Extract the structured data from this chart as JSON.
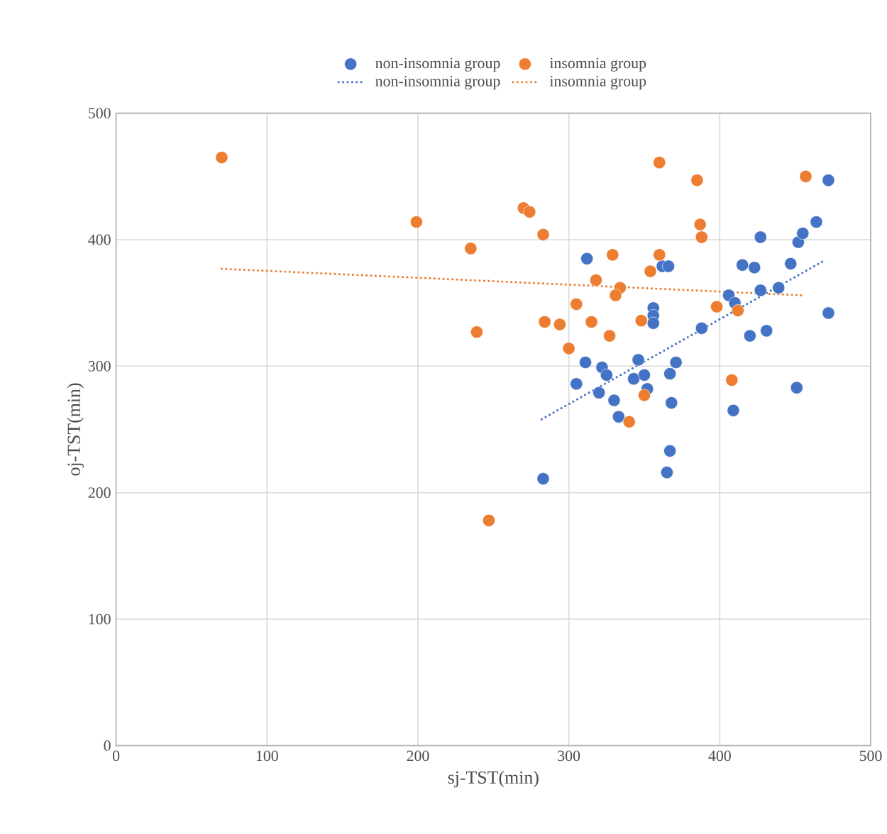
{
  "chart_data": {
    "type": "scatter",
    "xlabel": "sj-TST(min)",
    "ylabel": "oj-TST(min)",
    "xlim": [
      0,
      500
    ],
    "ylim": [
      0,
      500
    ],
    "xticks": [
      0,
      100,
      200,
      300,
      400,
      500
    ],
    "yticks": [
      0,
      100,
      200,
      300,
      400,
      500
    ],
    "grid": true,
    "legend": "top",
    "series": [
      {
        "name": "non-insomnia group",
        "marker": "circle",
        "color": "#4472c4",
        "x": [
          312,
          283,
          311,
          305,
          322,
          325,
          320,
          330,
          333,
          346,
          343,
          350,
          352,
          356,
          356,
          356,
          362,
          366,
          367,
          371,
          368,
          367,
          365,
          388,
          406,
          410,
          409,
          415,
          423,
          427,
          427,
          420,
          431,
          439,
          447,
          452,
          455,
          464,
          472,
          472,
          451
        ],
        "values": [
          385,
          211,
          303,
          286,
          299,
          293,
          279,
          273,
          260,
          305,
          290,
          293,
          282,
          346,
          340,
          334,
          379,
          379,
          294,
          303,
          271,
          233,
          216,
          330,
          356,
          350,
          265,
          380,
          378,
          402,
          360,
          324,
          328,
          362,
          381,
          398,
          405,
          414,
          447,
          342,
          283
        ]
      },
      {
        "name": "insomnia group",
        "marker": "circle",
        "color": "#ed7d31",
        "x": [
          70,
          199,
          235,
          239,
          247,
          270,
          274,
          283,
          284,
          294,
          300,
          305,
          315,
          318,
          327,
          329,
          334,
          331,
          340,
          348,
          350,
          354,
          360,
          360,
          385,
          387,
          388,
          398,
          408,
          412,
          457
        ],
        "values": [
          465,
          414,
          393,
          327,
          178,
          425,
          422,
          404,
          335,
          333,
          314,
          349,
          335,
          368,
          324,
          388,
          362,
          356,
          256,
          336,
          277,
          375,
          461,
          388,
          447,
          412,
          402,
          347,
          289,
          344,
          450
        ]
      },
      {
        "name": "non-insomnia group",
        "type": "line",
        "marker": "none",
        "line_style": "dotted",
        "color": "#4472c4",
        "x": [
          282,
          470
        ],
        "values": [
          258,
          384
        ]
      },
      {
        "name": "insomnia group",
        "type": "line",
        "marker": "none",
        "line_style": "dotted",
        "color": "#ed7d31",
        "x": [
          70,
          455
        ],
        "values": [
          377,
          356
        ]
      }
    ]
  }
}
